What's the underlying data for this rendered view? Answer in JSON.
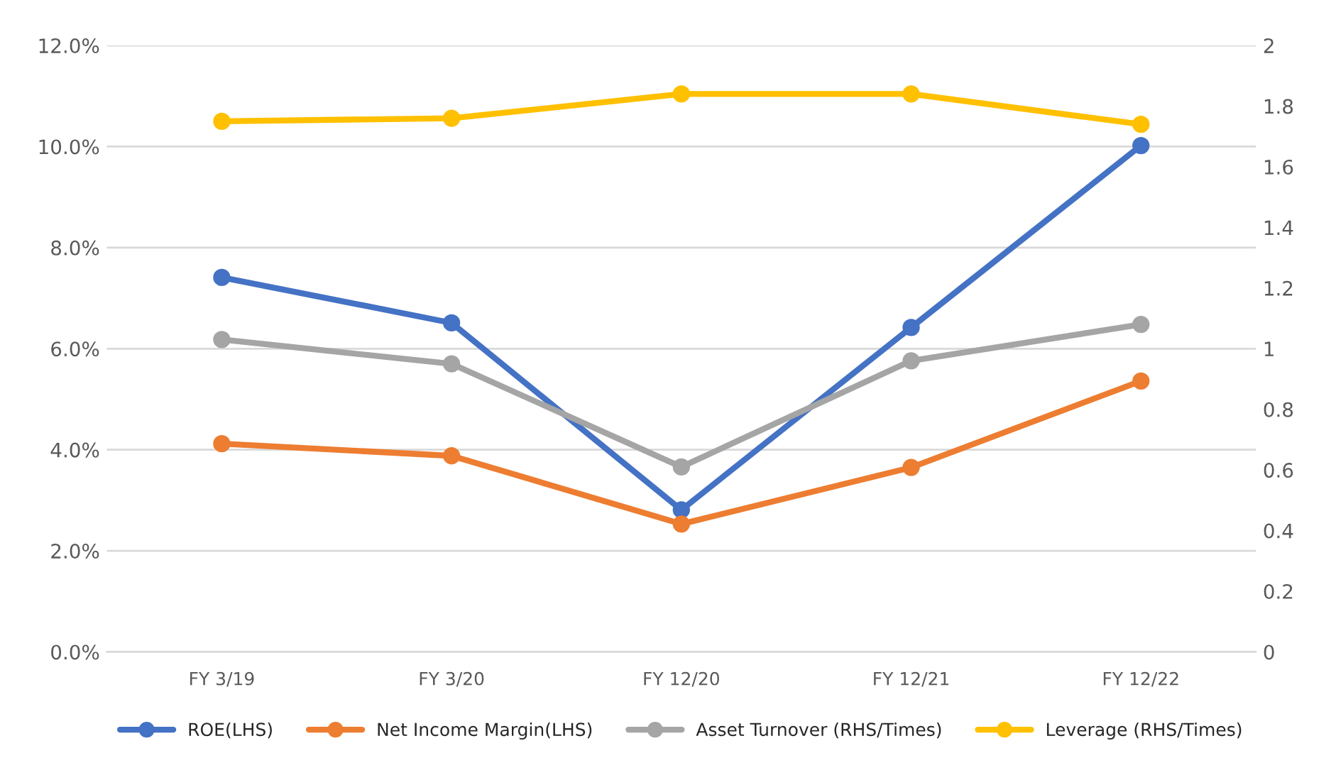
{
  "chart_data": {
    "type": "line",
    "categories": [
      "FY 3/19",
      "FY 3/20",
      "FY 12/20",
      "FY 12/21",
      "FY 12/22"
    ],
    "series": [
      {
        "name": "ROE(LHS)",
        "color": "#4472c4",
        "values": [
          7.41,
          6.51,
          2.81,
          6.42,
          10.02
        ]
      },
      {
        "name": "Net Income Margin(LHS)",
        "color": "#ed7d31",
        "values": [
          4.12,
          3.88,
          2.53,
          3.65,
          5.36
        ]
      },
      {
        "name": "Asset Turnover (RHS/Times)",
        "color": "#a5a5a5",
        "axis": "y2",
        "values": [
          1.03,
          0.95,
          0.61,
          0.96,
          1.08
        ]
      },
      {
        "name": "Leverage (RHS/Times)",
        "color": "#ffc000",
        "axis": "y2",
        "values": [
          1.75,
          1.76,
          1.84,
          1.84,
          1.74
        ]
      }
    ],
    "ylim": [
      0,
      12
    ],
    "yticks": [
      {
        "value": 0,
        "label": "0.0%"
      },
      {
        "value": 2,
        "label": "2.0%"
      },
      {
        "value": 4,
        "label": "4.0%"
      },
      {
        "value": 6,
        "label": "6.0%"
      },
      {
        "value": 8,
        "label": "8.0%"
      },
      {
        "value": 10,
        "label": "10.0%"
      },
      {
        "value": 12,
        "label": "12.0%"
      }
    ],
    "y2lim": [
      0,
      2
    ],
    "y2ticks": [
      0,
      0.2,
      0.4,
      0.6,
      0.8,
      1,
      1.2,
      1.4,
      1.6,
      1.8,
      2
    ],
    "grid": "y",
    "legend": "bottom",
    "marker": "circle",
    "line_style": "solid"
  }
}
